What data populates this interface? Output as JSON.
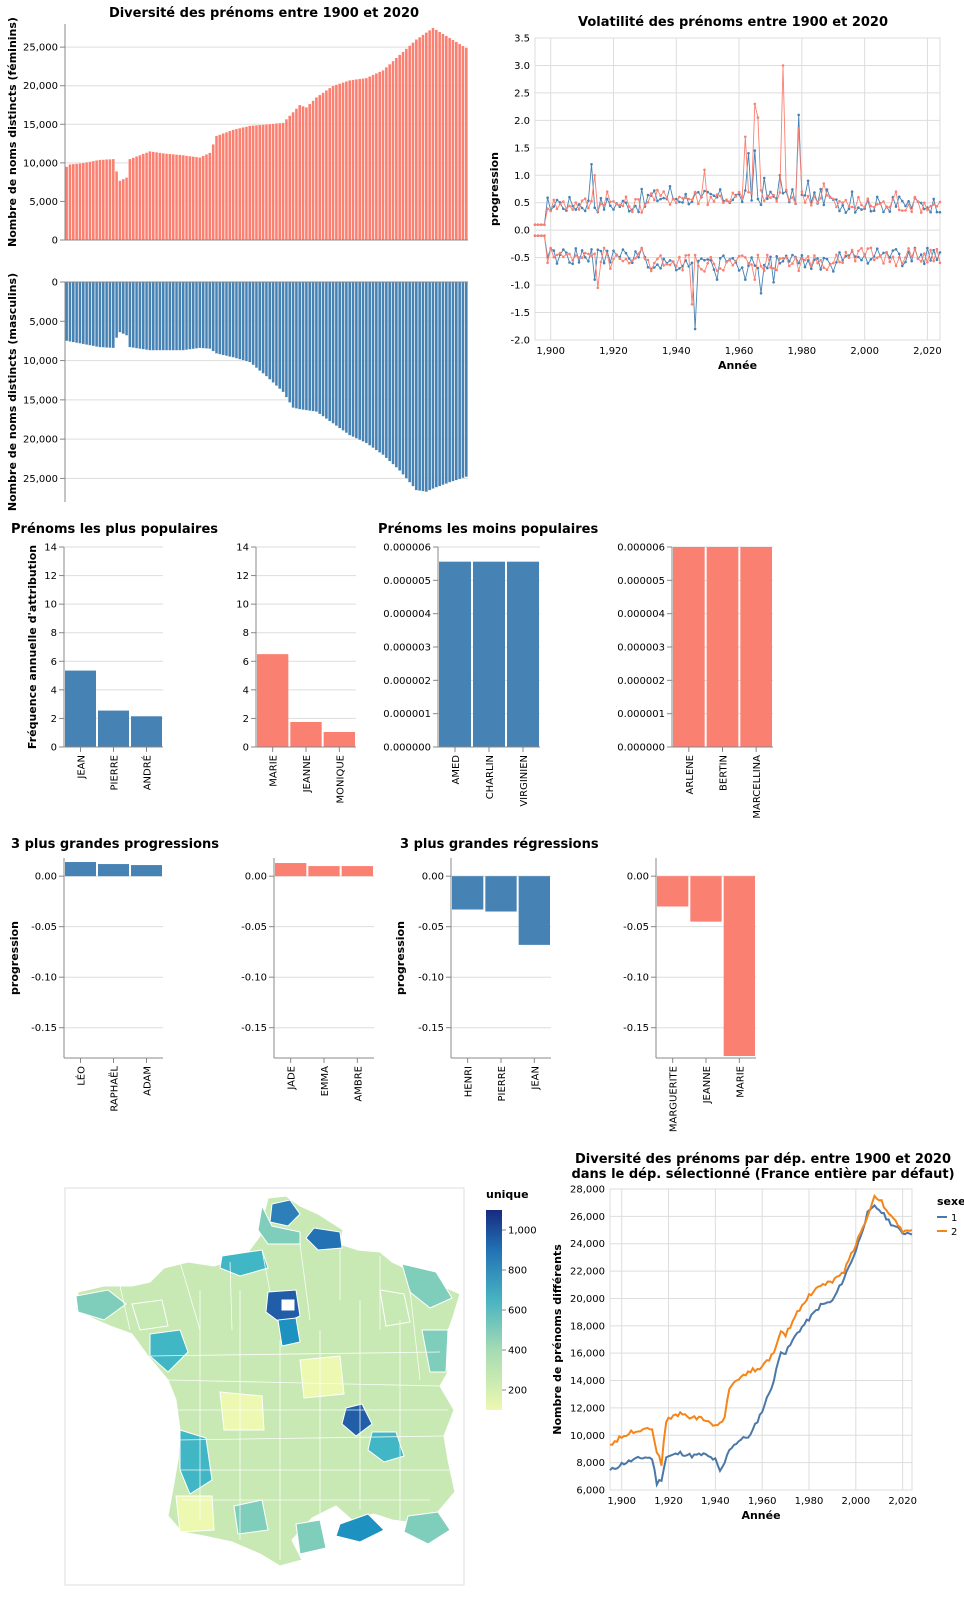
{
  "colors": {
    "male": "#4682b4",
    "female": "#fa8072",
    "s1": "#4c78a8",
    "s2": "#f58518"
  },
  "chart_data": [
    {
      "id": "diversity-female",
      "type": "bar",
      "title": "Diversité des prénoms entre 1900 et 2020",
      "ylabel": "Nombre de noms distincts (féminins)",
      "ylim": [
        0,
        28000
      ],
      "yticks": [
        0,
        5000,
        10000,
        15000,
        20000,
        25000
      ],
      "ytick_labels": [
        "0",
        "5,000",
        "10,000",
        "15,000",
        "20,000",
        "25,000"
      ],
      "x_start": 1900,
      "keypoints": [
        [
          1900,
          9500
        ],
        [
          1901,
          9800
        ],
        [
          1905,
          10000
        ],
        [
          1910,
          10400
        ],
        [
          1914,
          10500
        ],
        [
          1915,
          8900
        ],
        [
          1916,
          7700
        ],
        [
          1918,
          8100
        ],
        [
          1919,
          10500
        ],
        [
          1925,
          11500
        ],
        [
          1930,
          11200
        ],
        [
          1935,
          11000
        ],
        [
          1940,
          10700
        ],
        [
          1943,
          11300
        ],
        [
          1945,
          13500
        ],
        [
          1950,
          14300
        ],
        [
          1955,
          14800
        ],
        [
          1960,
          15000
        ],
        [
          1965,
          15200
        ],
        [
          1970,
          17500
        ],
        [
          1972,
          17200
        ],
        [
          1975,
          18500
        ],
        [
          1980,
          20000
        ],
        [
          1985,
          20700
        ],
        [
          1990,
          21000
        ],
        [
          1995,
          22000
        ],
        [
          2000,
          24000
        ],
        [
          2005,
          26000
        ],
        [
          2010,
          27500
        ],
        [
          2015,
          26200
        ],
        [
          2020,
          24900
        ]
      ]
    },
    {
      "id": "diversity-male",
      "type": "bar",
      "title": "",
      "ylabel": "Nombre de noms distincts (masculins)",
      "ylim": [
        0,
        28000
      ],
      "yticks": [
        0,
        5000,
        10000,
        15000,
        20000,
        25000
      ],
      "ytick_labels": [
        "0",
        "5,000",
        "10,000",
        "15,000",
        "20,000",
        "25,000"
      ],
      "x_start": 1900,
      "keypoints": [
        [
          1900,
          7500
        ],
        [
          1905,
          7900
        ],
        [
          1910,
          8300
        ],
        [
          1914,
          8400
        ],
        [
          1915,
          7100
        ],
        [
          1916,
          6400
        ],
        [
          1918,
          6800
        ],
        [
          1919,
          8300
        ],
        [
          1925,
          8700
        ],
        [
          1935,
          8700
        ],
        [
          1940,
          8400
        ],
        [
          1943,
          8500
        ],
        [
          1945,
          9100
        ],
        [
          1950,
          9600
        ],
        [
          1955,
          10200
        ],
        [
          1960,
          12000
        ],
        [
          1965,
          14000
        ],
        [
          1968,
          16000
        ],
        [
          1970,
          16200
        ],
        [
          1975,
          16500
        ],
        [
          1980,
          18000
        ],
        [
          1985,
          19500
        ],
        [
          1990,
          20500
        ],
        [
          1995,
          22000
        ],
        [
          2000,
          24000
        ],
        [
          2005,
          26500
        ],
        [
          2008,
          26700
        ],
        [
          2010,
          26300
        ],
        [
          2015,
          25500
        ],
        [
          2020,
          24800
        ]
      ]
    },
    {
      "id": "volatility",
      "type": "line",
      "title": "Volatilité des prénoms entre 1900 et 2020",
      "xlabel": "Année",
      "ylabel": "progression",
      "xlim": [
        1895,
        2024
      ],
      "ylim": [
        -2.0,
        3.5
      ],
      "xticks": [
        1900,
        1920,
        1940,
        1960,
        1980,
        2000,
        2020
      ],
      "xtick_labels": [
        "1,900",
        "1,920",
        "1,940",
        "1,960",
        "1,980",
        "2,000",
        "2,020"
      ],
      "yticks": [
        -2.0,
        -1.5,
        -1.0,
        -0.5,
        0.0,
        0.5,
        1.0,
        1.5,
        2.0,
        2.5,
        3.0,
        3.5
      ],
      "ytick_labels": [
        "-2.0",
        "-1.5",
        "-1.0",
        "-0.5",
        "0.0",
        "0.5",
        "1.0",
        "1.5",
        "2.0",
        "2.5",
        "3.0",
        "3.5"
      ],
      "spikes": {
        "male_pos": [
          [
            1902,
            0.55
          ],
          [
            1913,
            1.2
          ],
          [
            1929,
            0.75
          ],
          [
            1938,
            0.8
          ],
          [
            1948,
            0.6
          ],
          [
            1963,
            1.4
          ],
          [
            1965,
            1.45
          ],
          [
            1968,
            0.95
          ],
          [
            1973,
            1.0
          ],
          [
            1979,
            2.1
          ],
          [
            1982,
            0.9
          ],
          [
            1996,
            0.7
          ],
          [
            2009,
            0.6
          ]
        ],
        "female_pos": [
          [
            1914,
            1.0
          ],
          [
            1918,
            0.7
          ],
          [
            1949,
            1.1
          ],
          [
            1962,
            1.7
          ],
          [
            1965,
            2.3
          ],
          [
            1966,
            2.05
          ],
          [
            1974,
            3.0
          ],
          [
            1979,
            1.85
          ],
          [
            1987,
            0.85
          ],
          [
            2010,
            0.7
          ]
        ],
        "male_neg": [
          [
            1914,
            -0.9
          ],
          [
            1917,
            -0.6
          ],
          [
            1943,
            -0.55
          ],
          [
            1946,
            -1.8
          ],
          [
            1953,
            -0.9
          ],
          [
            1962,
            -0.9
          ],
          [
            1967,
            -1.15
          ],
          [
            1971,
            -0.95
          ],
          [
            1979,
            -0.6
          ],
          [
            1990,
            -0.75
          ],
          [
            2012,
            -0.65
          ]
        ],
        "female_neg": [
          [
            1902,
            -0.45
          ],
          [
            1915,
            -1.05
          ],
          [
            1919,
            -0.7
          ],
          [
            1933,
            -0.6
          ],
          [
            1945,
            -1.35
          ],
          [
            1949,
            -0.75
          ],
          [
            1965,
            -0.9
          ],
          [
            1976,
            -0.65
          ],
          [
            1985,
            -0.6
          ],
          [
            2010,
            -0.65
          ]
        ]
      }
    },
    {
      "id": "popular-male",
      "type": "bar",
      "title": "Prénoms les plus populaires",
      "ylabel": "Fréquence annuelle d'attribution",
      "ylim": [
        0,
        14
      ],
      "yticks": [
        0,
        2,
        4,
        6,
        8,
        10,
        12,
        14
      ],
      "ytick_labels": [
        "0",
        "2",
        "4",
        "6",
        "8",
        "10",
        "12",
        "14"
      ],
      "categories": [
        "JEAN",
        "PIERRE",
        "ANDRÉ"
      ],
      "values": [
        5.35,
        2.55,
        2.15
      ]
    },
    {
      "id": "popular-female",
      "type": "bar",
      "title": "",
      "ylabel": "",
      "ylim": [
        0,
        14
      ],
      "yticks": [
        0,
        2,
        4,
        6,
        8,
        10,
        12,
        14
      ],
      "ytick_labels": [
        "0",
        "2",
        "4",
        "6",
        "8",
        "10",
        "12",
        "14"
      ],
      "categories": [
        "MARIE",
        "JEANNE",
        "MONIQUE"
      ],
      "values": [
        6.5,
        1.75,
        1.05
      ]
    },
    {
      "id": "unpopular-male",
      "type": "bar",
      "title": "Prénoms les moins populaires",
      "ylabel": "",
      "ylim": [
        0,
        6e-06
      ],
      "yticks": [
        0,
        1e-06,
        2e-06,
        3e-06,
        4e-06,
        5e-06,
        6e-06
      ],
      "ytick_labels": [
        "0.000000",
        "0.000001",
        "0.000002",
        "0.000003",
        "0.000004",
        "0.000005",
        "0.000006"
      ],
      "categories": [
        "AMED",
        "CHARLIN",
        "VIRGINIEN"
      ],
      "values": [
        5.56e-06,
        5.56e-06,
        5.56e-06
      ]
    },
    {
      "id": "unpopular-female",
      "type": "bar",
      "title": "",
      "ylabel": "",
      "ylim": [
        0,
        6e-06
      ],
      "yticks": [
        0,
        1e-06,
        2e-06,
        3e-06,
        4e-06,
        5e-06,
        6e-06
      ],
      "ytick_labels": [
        "0.000000",
        "0.000001",
        "0.000002",
        "0.000003",
        "0.000004",
        "0.000005",
        "0.000006"
      ],
      "categories": [
        "ARLENE",
        "BERTIN",
        "MARCELLINA"
      ],
      "values": [
        6e-06,
        6e-06,
        6e-06
      ]
    },
    {
      "id": "progress-male",
      "type": "bar",
      "title": "3 plus grandes progressions",
      "ylabel": "progression",
      "ylim": [
        -0.18,
        0.018
      ],
      "yticks": [
        0.0,
        -0.05,
        -0.1,
        -0.15
      ],
      "ytick_labels": [
        "0.00",
        "-0.05",
        "-0.10",
        "-0.15"
      ],
      "categories": [
        "LÉO",
        "RAPHAËL",
        "ADAM"
      ],
      "values": [
        0.014,
        0.012,
        0.011
      ]
    },
    {
      "id": "progress-female",
      "type": "bar",
      "title": "",
      "ylabel": "",
      "ylim": [
        -0.18,
        0.018
      ],
      "yticks": [
        0.0,
        -0.05,
        -0.1,
        -0.15
      ],
      "ytick_labels": [
        "0.00",
        "-0.05",
        "-0.10",
        "-0.15"
      ],
      "categories": [
        "JADE",
        "EMMA",
        "AMBRE"
      ],
      "values": [
        0.013,
        0.01,
        0.01
      ]
    },
    {
      "id": "regress-male",
      "type": "bar",
      "title": "3 plus grandes régressions",
      "ylabel": "progression",
      "ylim": [
        -0.18,
        0.018
      ],
      "yticks": [
        0.0,
        -0.05,
        -0.1,
        -0.15
      ],
      "ytick_labels": [
        "0.00",
        "-0.05",
        "-0.10",
        "-0.15"
      ],
      "categories": [
        "HENRI",
        "PIERRE",
        "JEAN"
      ],
      "values": [
        -0.033,
        -0.035,
        -0.068
      ]
    },
    {
      "id": "regress-female",
      "type": "bar",
      "title": "",
      "ylabel": "",
      "ylim": [
        -0.18,
        0.018
      ],
      "yticks": [
        0.0,
        -0.05,
        -0.1,
        -0.15
      ],
      "ytick_labels": [
        "0.00",
        "-0.05",
        "-0.10",
        "-0.15"
      ],
      "categories": [
        "MARGUERITE",
        "JEANNE",
        "MARIE"
      ],
      "values": [
        -0.03,
        -0.045,
        -0.178
      ]
    },
    {
      "id": "map",
      "type": "heatmap",
      "legend_title": "unique",
      "legend_ticks": [
        200,
        400,
        600,
        800,
        "1,000"
      ],
      "legend_range": [
        100,
        1100
      ]
    },
    {
      "id": "dept-diversity",
      "type": "line",
      "title_lines": [
        "Diversité des prénoms par dép. entre 1900 et 2020",
        "dans le dép. sélectionné (France entière par défaut)"
      ],
      "xlabel": "Année",
      "ylabel": "Nombre de prénoms différents",
      "xlim": [
        1895,
        2024
      ],
      "ylim": [
        6000,
        28000
      ],
      "xticks": [
        1900,
        1920,
        1940,
        1960,
        1980,
        2000,
        2020
      ],
      "xtick_labels": [
        "1,900",
        "1,920",
        "1,940",
        "1,960",
        "1,980",
        "2,000",
        "2,020"
      ],
      "yticks": [
        6000,
        8000,
        10000,
        12000,
        14000,
        16000,
        18000,
        20000,
        22000,
        24000,
        26000,
        28000
      ],
      "ytick_labels": [
        "6,000",
        "8,000",
        "10,000",
        "12,000",
        "14,000",
        "16,000",
        "18,000",
        "20,000",
        "22,000",
        "24,000",
        "26,000",
        "28,000"
      ],
      "legend_title": "sexe",
      "series": [
        {
          "name": "1",
          "points": [
            [
              1895,
              7400
            ],
            [
              1900,
              7900
            ],
            [
              1905,
              8200
            ],
            [
              1910,
              8400
            ],
            [
              1913,
              8300
            ],
            [
              1915,
              6500
            ],
            [
              1917,
              6800
            ],
            [
              1919,
              8400
            ],
            [
              1925,
              8700
            ],
            [
              1930,
              8500
            ],
            [
              1935,
              8600
            ],
            [
              1940,
              8200
            ],
            [
              1942,
              7300
            ],
            [
              1944,
              8000
            ],
            [
              1946,
              9000
            ],
            [
              1950,
              9600
            ],
            [
              1955,
              10000
            ],
            [
              1960,
              11800
            ],
            [
              1965,
              14000
            ],
            [
              1968,
              16200
            ],
            [
              1970,
              16000
            ],
            [
              1975,
              17500
            ],
            [
              1980,
              18500
            ],
            [
              1985,
              19500
            ],
            [
              1990,
              19800
            ],
            [
              1995,
              21500
            ],
            [
              2000,
              23500
            ],
            [
              2005,
              26200
            ],
            [
              2008,
              26700
            ],
            [
              2010,
              26500
            ],
            [
              2015,
              25500
            ],
            [
              2020,
              24800
            ]
          ]
        },
        {
          "name": "2",
          "points": [
            [
              1895,
              9300
            ],
            [
              1900,
              9900
            ],
            [
              1905,
              10300
            ],
            [
              1910,
              10500
            ],
            [
              1913,
              10500
            ],
            [
              1915,
              8800
            ],
            [
              1917,
              7900
            ],
            [
              1919,
              11100
            ],
            [
              1925,
              11600
            ],
            [
              1930,
              11300
            ],
            [
              1935,
              11200
            ],
            [
              1940,
              10700
            ],
            [
              1942,
              10800
            ],
            [
              1944,
              11300
            ],
            [
              1946,
              13500
            ],
            [
              1950,
              14200
            ],
            [
              1955,
              14700
            ],
            [
              1960,
              15000
            ],
            [
              1965,
              16000
            ],
            [
              1968,
              17500
            ],
            [
              1970,
              17300
            ],
            [
              1975,
              19000
            ],
            [
              1980,
              20200
            ],
            [
              1985,
              21000
            ],
            [
              1990,
              21200
            ],
            [
              1995,
              22000
            ],
            [
              2000,
              24000
            ],
            [
              2005,
              26000
            ],
            [
              2008,
              27500
            ],
            [
              2010,
              27300
            ],
            [
              2015,
              26000
            ],
            [
              2020,
              24900
            ]
          ]
        }
      ]
    }
  ]
}
